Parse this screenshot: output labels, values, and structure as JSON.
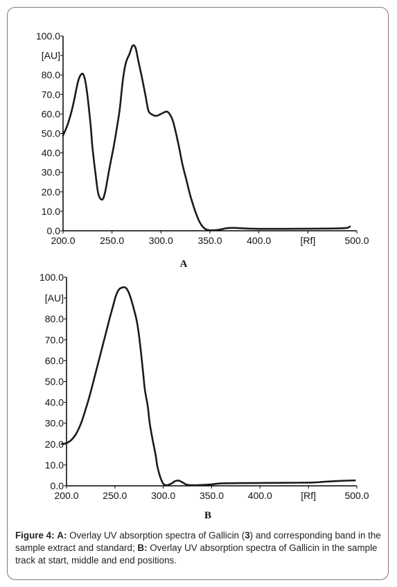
{
  "chart_data": [
    {
      "id": "A",
      "type": "line",
      "panel_label": "A",
      "xlim": [
        200,
        500
      ],
      "ylim": [
        0,
        100
      ],
      "x_ticks": [
        "200.0",
        "250.0",
        "300.0",
        "350.0",
        "400.0",
        "[Rf]",
        "500.0"
      ],
      "y_ticks": [
        "0.0",
        "10.0",
        "20.0",
        "30.0",
        "40.0",
        "50.0",
        "60.0",
        "70.0",
        "80.0",
        "[AU]",
        "100.0"
      ],
      "series": [
        {
          "color": "#1a1a1a",
          "points": [
            [
              200,
              49
            ],
            [
              205,
              55
            ],
            [
              210,
              64
            ],
            [
              215,
              76
            ],
            [
              218,
              80
            ],
            [
              221,
              80
            ],
            [
              224,
              73
            ],
            [
              228,
              55
            ],
            [
              230,
              43
            ],
            [
              233,
              30
            ],
            [
              236,
              19
            ],
            [
              240,
              16
            ],
            [
              243,
              20
            ],
            [
              247,
              31
            ],
            [
              252,
              44
            ],
            [
              256,
              56
            ],
            [
              258,
              63
            ],
            [
              261,
              77
            ],
            [
              264,
              86
            ],
            [
              268,
              91
            ],
            [
              271,
              95
            ],
            [
              274,
              94
            ],
            [
              277,
              87
            ],
            [
              280,
              80
            ],
            [
              284,
              70
            ],
            [
              287,
              62
            ],
            [
              290,
              60
            ],
            [
              295,
              59
            ],
            [
              300,
              60
            ],
            [
              304,
              61
            ],
            [
              307,
              61
            ],
            [
              311,
              58
            ],
            [
              314,
              53
            ],
            [
              318,
              44
            ],
            [
              322,
              34
            ],
            [
              326,
              26
            ],
            [
              330,
              18
            ],
            [
              335,
              10
            ],
            [
              340,
              4
            ],
            [
              345,
              1
            ],
            [
              350,
              0.3
            ],
            [
              355,
              0.3
            ],
            [
              360,
              0.6
            ],
            [
              367,
              1.3
            ],
            [
              375,
              1.5
            ],
            [
              385,
              1.2
            ],
            [
              400,
              1.0
            ],
            [
              430,
              1.0
            ],
            [
              460,
              1.1
            ],
            [
              480,
              1.2
            ],
            [
              490,
              1.5
            ],
            [
              493,
              2.2
            ]
          ]
        }
      ]
    },
    {
      "id": "B",
      "type": "line",
      "panel_label": "B",
      "xlim": [
        200,
        500
      ],
      "ylim": [
        0,
        100
      ],
      "x_ticks": [
        "200.0",
        "250.0",
        "300.0",
        "350.0",
        "400.0",
        "[Rf]",
        "500.0"
      ],
      "y_ticks": [
        "0.0",
        "10.0",
        "20.0",
        "30.0",
        "40.0",
        "50.0",
        "60.0",
        "70.0",
        "80.0",
        "[AU]",
        "100.0"
      ],
      "series": [
        {
          "color": "#1a1a1a",
          "points": [
            [
              195,
              20
            ],
            [
              200,
              20.5
            ],
            [
              205,
              22
            ],
            [
              210,
              25
            ],
            [
              215,
              30
            ],
            [
              220,
              37
            ],
            [
              225,
              45
            ],
            [
              230,
              54
            ],
            [
              235,
              63
            ],
            [
              240,
              72
            ],
            [
              245,
              81
            ],
            [
              248,
              86
            ],
            [
              251,
              91
            ],
            [
              254,
              94
            ],
            [
              257,
              95
            ],
            [
              261,
              95
            ],
            [
              264,
              93
            ],
            [
              267,
              89
            ],
            [
              270,
              84
            ],
            [
              273,
              78
            ],
            [
              276,
              68
            ],
            [
              279,
              55
            ],
            [
              281,
              46
            ],
            [
              284,
              38
            ],
            [
              286,
              30
            ],
            [
              289,
              22
            ],
            [
              292,
              15
            ],
            [
              294,
              9
            ],
            [
              297,
              4
            ],
            [
              300,
              1
            ],
            [
              303,
              0.3
            ],
            [
              306,
              0.6
            ],
            [
              309,
              1.2
            ],
            [
              312,
              2.2
            ],
            [
              316,
              2.5
            ],
            [
              320,
              1.6
            ],
            [
              324,
              0.6
            ],
            [
              330,
              0.3
            ],
            [
              340,
              0.4
            ],
            [
              350,
              0.7
            ],
            [
              360,
              1.2
            ],
            [
              380,
              1.3
            ],
            [
              410,
              1.4
            ],
            [
              440,
              1.5
            ],
            [
              455,
              1.6
            ],
            [
              465,
              1.9
            ],
            [
              475,
              2.2
            ],
            [
              490,
              2.5
            ],
            [
              498,
              2.6
            ]
          ]
        }
      ]
    }
  ],
  "caption": {
    "fig_label": "Figure 4:",
    "label_a": "A:",
    "text_a1": " Overlay UV absorption spectra of Gallicin (",
    "compound_number": "3",
    "text_a2": ") and corresponding band in the sample extract and standard; ",
    "label_b": "B:",
    "text_b": " Overlay UV absorption spectra of Gallicin in the sample track at start, middle and end positions."
  }
}
